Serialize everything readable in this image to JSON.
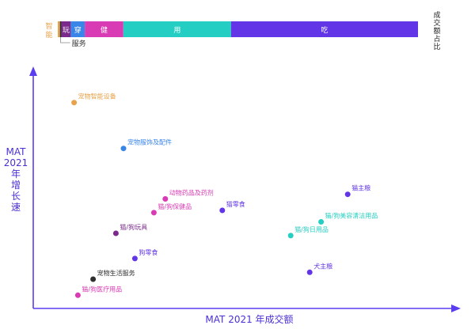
{
  "chart_data": {
    "type": "scatter",
    "xlabel": "MAT 2021 年成交额",
    "ylabel_lines": [
      "MAT",
      "2021",
      "年",
      "增",
      "长",
      "速"
    ],
    "share_bar": {
      "label_chars": [
        "成",
        "交",
        "额",
        "占",
        "比"
      ],
      "segments": [
        {
          "label": "智能",
          "color": "#e8a24a",
          "share": 0.006
        },
        {
          "label": "服务",
          "color": "#2f2f2f",
          "share": 0.004
        },
        {
          "label": "玩",
          "color": "#7b2a8c",
          "share": 0.026
        },
        {
          "label": "穿",
          "color": "#3a86e8",
          "share": 0.039
        },
        {
          "label": "健",
          "color": "#d93bb4",
          "share": 0.107
        },
        {
          "label": "用",
          "color": "#25cec2",
          "share": 0.299
        },
        {
          "label": "吃",
          "color": "#6236e6",
          "share": 0.519
        }
      ]
    },
    "xlim": [
      0,
      100
    ],
    "ylim": [
      0,
      100
    ],
    "points": [
      {
        "label": "宠物智能设备",
        "x": 7,
        "y": 87,
        "color": "#e8a24a"
      },
      {
        "label": "宠物服饰及配件",
        "x": 20,
        "y": 67,
        "color": "#3a86e8"
      },
      {
        "label": "动物药品及药剂",
        "x": 31,
        "y": 45,
        "color": "#d93bb4"
      },
      {
        "label": "猫/狗保健品",
        "x": 28,
        "y": 39,
        "color": "#d93bb4"
      },
      {
        "label": "猫/狗玩具",
        "x": 18,
        "y": 30,
        "color": "#7b2a8c"
      },
      {
        "label": "狗零食",
        "x": 23,
        "y": 19,
        "color": "#6236e6"
      },
      {
        "label": "宠物生活服务",
        "x": 12,
        "y": 10,
        "color": "#2f2f2f"
      },
      {
        "label": "猫/狗医疗用品",
        "x": 8,
        "y": 3,
        "color": "#d93bb4"
      },
      {
        "label": "猫零食",
        "x": 46,
        "y": 40,
        "color": "#6236e6"
      },
      {
        "label": "猫主粮",
        "x": 79,
        "y": 47,
        "color": "#6236e6"
      },
      {
        "label": "猫/狗美容清洁用品",
        "x": 72,
        "y": 35,
        "color": "#25cec2"
      },
      {
        "label": "猫/狗日用品",
        "x": 64,
        "y": 29,
        "color": "#25cec2"
      },
      {
        "label": "犬主粮",
        "x": 69,
        "y": 13,
        "color": "#6236e6"
      }
    ],
    "axis_color": "#5a3df0"
  }
}
